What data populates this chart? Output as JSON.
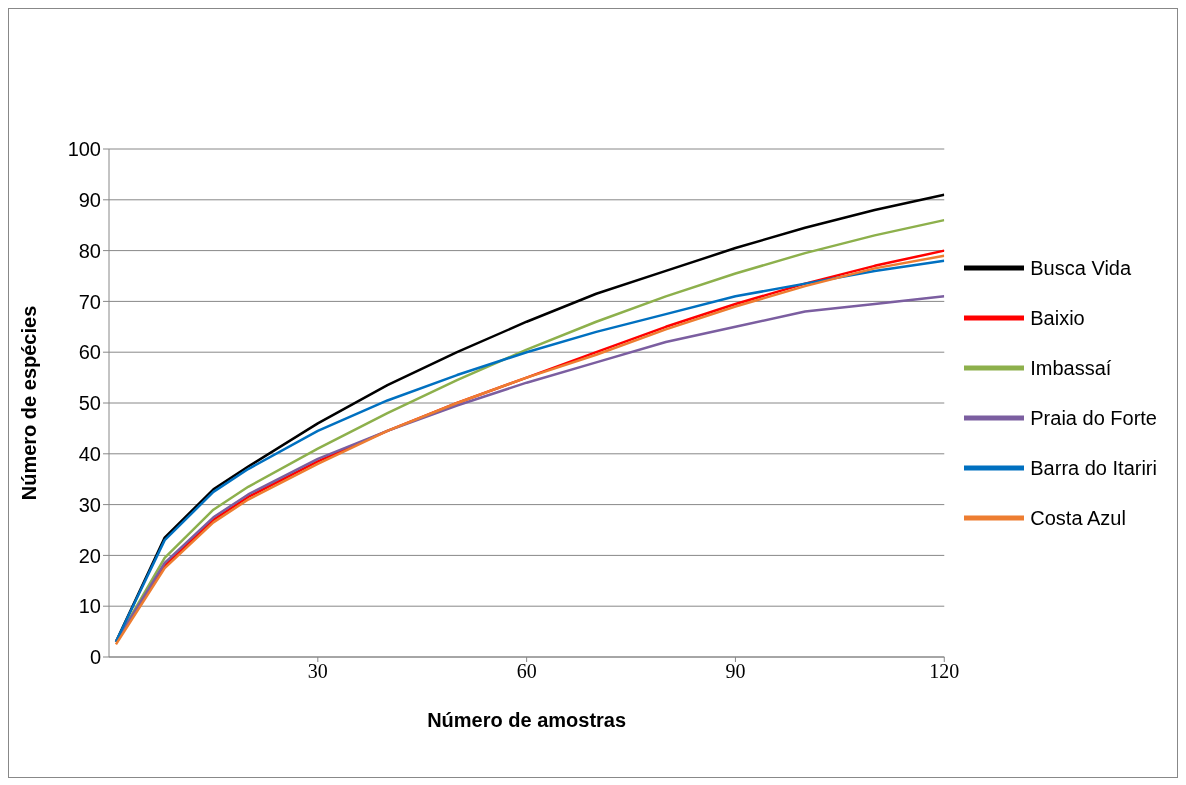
{
  "chart_data": {
    "type": "line",
    "xlabel": "Número de amostras",
    "ylabel": "Número de espécies",
    "x": [
      1,
      8,
      15,
      20,
      30,
      40,
      50,
      60,
      70,
      80,
      90,
      100,
      110,
      120
    ],
    "series": [
      {
        "name": "Busca Vida",
        "color": "#000000",
        "values": [
          3,
          23.5,
          33,
          37.5,
          46,
          53.5,
          60,
          66,
          71.5,
          76,
          80.5,
          84.5,
          88,
          91
        ]
      },
      {
        "name": "Baixio",
        "color": "#ff0000",
        "values": [
          3,
          18,
          27,
          31.5,
          38.5,
          44.5,
          50,
          55,
          60,
          65,
          69.5,
          73.5,
          77,
          80
        ]
      },
      {
        "name": "Imbassaí",
        "color": "#8db04c",
        "values": [
          3,
          19.5,
          29,
          33.5,
          41,
          48,
          54.5,
          60.5,
          66,
          71,
          75.5,
          79.5,
          83,
          86
        ]
      },
      {
        "name": "Praia do Forte",
        "color": "#7b5ea0",
        "values": [
          3,
          18.5,
          27.5,
          32,
          39,
          44.5,
          49.5,
          54,
          58,
          62,
          65,
          68,
          69.5,
          71
        ]
      },
      {
        "name": "Barra do Itariri",
        "color": "#0070c0",
        "values": [
          3,
          23,
          32.5,
          37,
          44.5,
          50.5,
          55.5,
          60,
          64,
          67.5,
          71,
          73.5,
          76,
          78
        ]
      },
      {
        "name": "Costa Azul",
        "color": "#ed7d31",
        "values": [
          2.5,
          17.5,
          26.5,
          31,
          38,
          44.5,
          50,
          55,
          59.5,
          64.5,
          69,
          73,
          76.5,
          79
        ]
      }
    ],
    "xlim": [
      0,
      120
    ],
    "xticks": [
      30,
      60,
      90,
      120
    ],
    "ylim": [
      0,
      100
    ],
    "yticks": [
      0,
      10,
      20,
      30,
      40,
      50,
      60,
      70,
      80,
      90,
      100
    ],
    "grid": "y",
    "legend": "right",
    "marker": "none",
    "line_style": "solid"
  }
}
